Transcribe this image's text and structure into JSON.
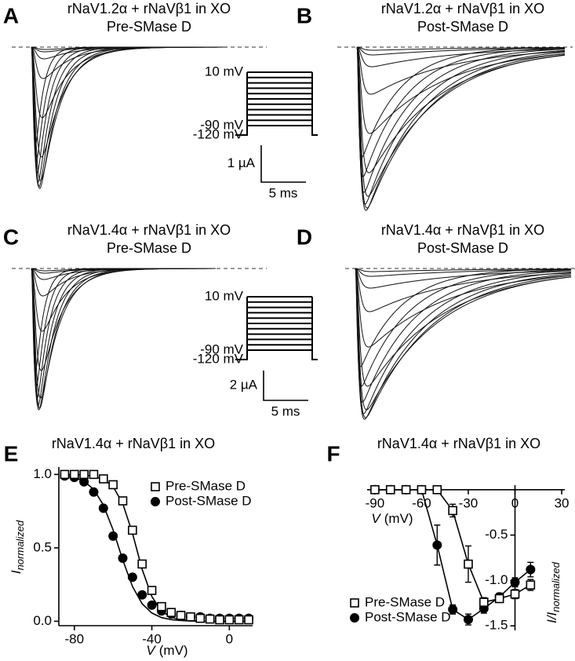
{
  "panels": [
    {
      "letter": "A",
      "title": "rNaV1.2α + rNaVβ1 in XO",
      "subtitle": "Pre-SMase D",
      "protocol_labels": [
        "10 mV",
        "-90 mV",
        "-120 mV"
      ],
      "scale_labels": [
        "1 µA",
        "5 ms"
      ]
    },
    {
      "letter": "B",
      "title": "rNaV1.2α + rNaVβ1 in XO",
      "subtitle": "Post-SMase D"
    },
    {
      "letter": "C",
      "title": "rNaV1.4α + rNaVβ1 in XO",
      "subtitle": "Pre-SMase D",
      "protocol_labels": [
        "10 mV",
        "-90 mV",
        "-120 mV"
      ],
      "scale_labels": [
        "2 µA",
        "5 ms"
      ]
    },
    {
      "letter": "D",
      "title": "rNaV1.4α + rNaVβ1 in XO",
      "subtitle": "Post-SMase D"
    }
  ],
  "chart_data": [
    {
      "type": "scatter",
      "letter": "E",
      "title": "rNaV1.4α + rNaVβ1 in XO",
      "xlabel": [
        "V",
        "(mV)"
      ],
      "ylabel": [
        "I",
        "normalized"
      ],
      "x": [
        -85,
        -80,
        -75,
        -70,
        -65,
        -60,
        -55,
        -50,
        -45,
        -40,
        -35,
        -30,
        -25,
        -20,
        -15,
        -10,
        -5,
        0,
        5,
        10
      ],
      "series": [
        {
          "name": "Pre-SMase D",
          "marker": "square-open",
          "color": "#000000",
          "values": [
            1.0,
            1.0,
            1.0,
            1.0,
            0.97,
            0.93,
            0.82,
            0.62,
            0.39,
            0.21,
            0.1,
            0.06,
            0.04,
            0.03,
            0.02,
            0.015,
            0.01,
            0.01,
            0.01,
            0.01
          ]
        },
        {
          "name": "Post-SMase D",
          "marker": "circle",
          "color": "#000000",
          "values": [
            0.99,
            0.98,
            0.95,
            0.88,
            0.77,
            0.58,
            0.43,
            0.3,
            0.18,
            0.11,
            0.07,
            0.05,
            0.04,
            0.03,
            0.03,
            0.02,
            0.02,
            0.02,
            0.02,
            0.02
          ]
        },
        {
          "marker": "none",
          "line": "solid",
          "color": "#000000",
          "values": [
            1.0,
            1.0,
            0.996,
            0.988,
            0.968,
            0.917,
            0.802,
            0.599,
            0.354,
            0.168,
            0.069,
            0.027,
            0.01,
            0.004,
            0.001,
            0,
            0,
            0,
            0,
            0
          ]
        },
        {
          "marker": "none",
          "line": "solid",
          "color": "#000000",
          "values": [
            0.991,
            0.979,
            0.953,
            0.898,
            0.791,
            0.622,
            0.417,
            0.237,
            0.119,
            0.056,
            0.025,
            0.011,
            0.005,
            0.002,
            0.001,
            0,
            0,
            0,
            0,
            0
          ]
        }
      ],
      "xlim": [
        -88,
        12
      ],
      "ylim": [
        -0.03,
        1.05
      ],
      "xticks": [
        -80,
        -40,
        0
      ],
      "yticks": [
        {
          "value": 0,
          "label": "0.0"
        },
        {
          "value": 0.5,
          "label": "0.5"
        },
        {
          "value": 1,
          "label": "1.0"
        }
      ],
      "legend": "upper right"
    },
    {
      "type": "line",
      "letter": "F",
      "title": "rNaV1.4α + rNaVβ1 in XO",
      "xlabel": [
        "V",
        "(mV)"
      ],
      "ylabel": [
        "I/I",
        "normalized"
      ],
      "x": [
        -90,
        -80,
        -70,
        -60,
        -50,
        -40,
        -30,
        -20,
        -10,
        0,
        10
      ],
      "series": [
        {
          "name": "Pre-SMase D",
          "marker": "square-open",
          "color": "#000000",
          "values": [
            0,
            0,
            0,
            0,
            0,
            -0.23,
            -0.82,
            -1.24,
            -1.2,
            -1.15,
            -1.05
          ],
          "errors": [
            0.02,
            0.02,
            0.02,
            0.02,
            0.02,
            0.07,
            0.2,
            0.05,
            0.04,
            0.05,
            0.06
          ]
        },
        {
          "name": "Post-SMase D",
          "marker": "circle",
          "color": "#000000",
          "values": [
            0,
            0,
            0,
            0,
            -0.61,
            -1.32,
            -1.43,
            -1.31,
            -1.18,
            -1.02,
            -0.88
          ],
          "errors": [
            0.02,
            0.02,
            0.02,
            0.02,
            0.22,
            0.05,
            0.06,
            0.05,
            0.04,
            0.05,
            0.08
          ]
        }
      ],
      "xlim": [
        -95,
        32
      ],
      "ylim": [
        -1.55,
        0.05
      ],
      "xticks": [
        -90,
        -60,
        -30,
        0,
        30
      ],
      "yticks": [
        {
          "value": -0.5,
          "label": "-0.5"
        },
        {
          "value": -1,
          "label": "-1.0"
        },
        {
          "value": -1.5,
          "label": "-1.5"
        }
      ],
      "legend": "lower left"
    }
  ]
}
